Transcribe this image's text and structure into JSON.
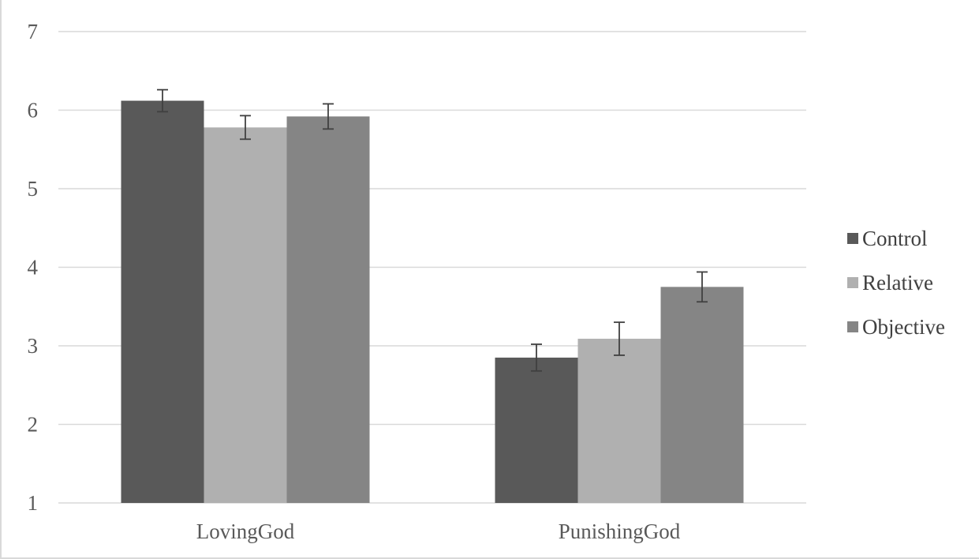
{
  "chart_data": {
    "type": "bar",
    "title": "",
    "xlabel": "",
    "ylabel": "",
    "ylim": [
      1,
      7
    ],
    "yticks": [
      1,
      2,
      3,
      4,
      5,
      6,
      7
    ],
    "grid": true,
    "legend_position": "right",
    "categories": [
      "LovingGod",
      "PunishingGod"
    ],
    "series": [
      {
        "name": "Control",
        "color": "#595959",
        "values": [
          6.12,
          2.85
        ],
        "error": [
          0.14,
          0.17
        ]
      },
      {
        "name": "Relative",
        "color": "#b0b0b0",
        "values": [
          5.78,
          3.09
        ],
        "error": [
          0.15,
          0.21
        ]
      },
      {
        "name": "Objective",
        "color": "#858585",
        "values": [
          5.92,
          3.75
        ],
        "error": [
          0.16,
          0.19
        ]
      }
    ],
    "colors": {
      "gridline": "#d9d9d9",
      "errorbar": "#404040",
      "tick_text": "#595959"
    }
  }
}
